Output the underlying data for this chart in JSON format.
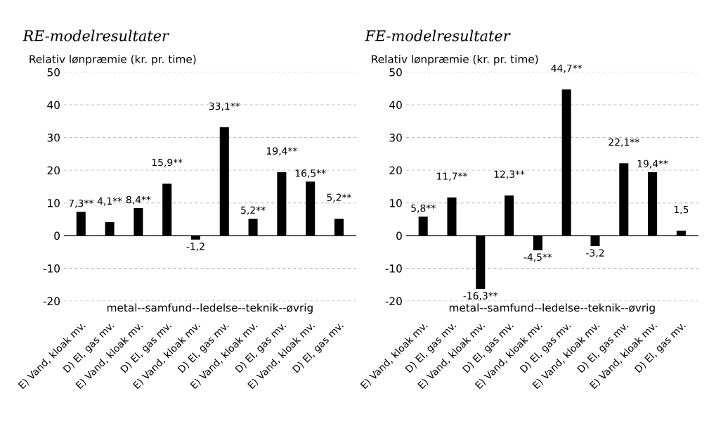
{
  "chart_data": [
    {
      "type": "bar",
      "title": "RE-modelresultater",
      "ylabel": "Relativ lønpræmie (kr. pr. time)",
      "categories": [
        "E) Vand, kloak mv.",
        "D) El, gas mv.",
        "E) Vand, kloak mv.",
        "D) El, gas mv.",
        "E) Vand, kloak mv.",
        "D) El, gas mv.",
        "E) Vand, kloak mv.",
        "D) El, gas mv.",
        "E) Vand, kloak mv.",
        "D) El, gas mv."
      ],
      "values": [
        7.3,
        4.1,
        8.4,
        15.9,
        -1.2,
        33.1,
        5.2,
        19.4,
        16.5,
        5.2
      ],
      "value_labels": [
        "7,3**",
        "4,1**",
        "8,4**",
        "15,9**",
        "-1,2",
        "33,1**",
        "5,2**",
        "19,4**",
        "16,5**",
        "5,2**"
      ],
      "color": "#000000",
      "ylim": [
        -20,
        50
      ],
      "yticks": [
        -20,
        -10,
        0,
        10,
        20,
        30,
        40,
        50
      ],
      "grid": "y",
      "annotations": [
        "metal--samfund--ledelse--teknik--øvrig"
      ]
    },
    {
      "type": "bar",
      "title": "FE-modelresultater",
      "ylabel": "Relativ lønpræmie (kr. pr. time)",
      "categories": [
        "E) Vand, kloak mv.",
        "D) El, gas mv.",
        "E) Vand, kloak mv.",
        "D) El, gas mv.",
        "E) Vand, kloak mv.",
        "D) El, gas mv.",
        "E) Vand, kloak mv.",
        "D) El, gas mv.",
        "E) Vand, kloak mv.",
        "D) El, gas mv."
      ],
      "values": [
        5.8,
        11.7,
        -16.3,
        12.3,
        -4.5,
        44.7,
        -3.2,
        22.1,
        19.4,
        1.5
      ],
      "value_labels": [
        "5,8**",
        "11,7**",
        "-16,3**",
        "12,3**",
        "-4,5**",
        "44,7**",
        "-3,2",
        "22,1**",
        "19,4**",
        "1,5"
      ],
      "color": "#000000",
      "ylim": [
        -20,
        50
      ],
      "yticks": [
        -20,
        -10,
        0,
        10,
        20,
        30,
        40,
        50
      ],
      "grid": "y",
      "annotations": [
        "metal--samfund--ledelse--teknik--øvrig"
      ]
    }
  ]
}
